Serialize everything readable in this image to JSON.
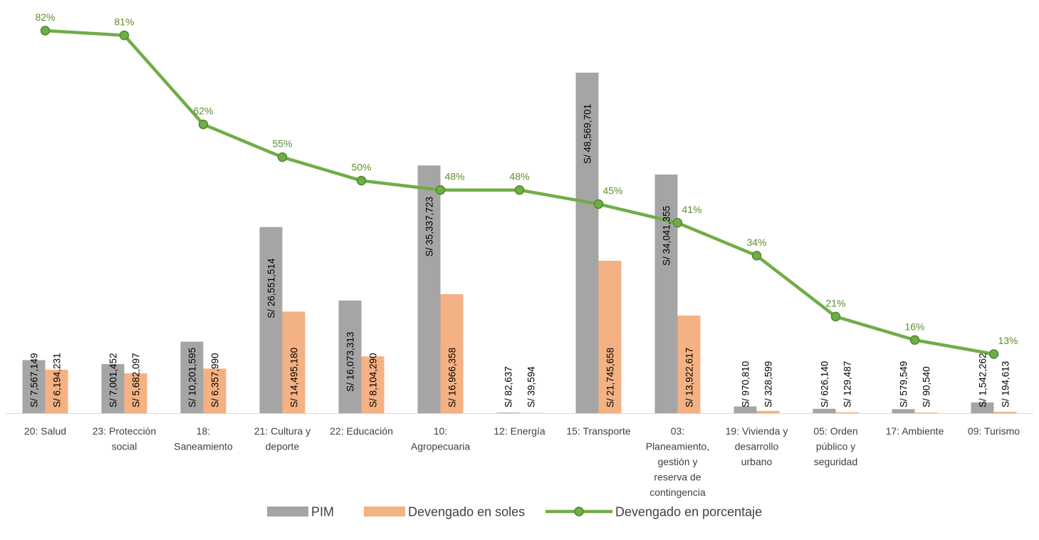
{
  "chart_data": {
    "type": "bar",
    "categories": [
      [
        "20: Salud"
      ],
      [
        "23: Protección",
        "social"
      ],
      [
        "18:",
        "Saneamiento"
      ],
      [
        "21: Cultura y",
        "deporte"
      ],
      [
        "22: Educación"
      ],
      [
        "10:",
        "Agropecuaria"
      ],
      [
        "12: Energía"
      ],
      [
        "15: Transporte"
      ],
      [
        "03:",
        "Planeamiento,",
        "gestión y",
        "reserva de",
        "contingencia"
      ],
      [
        "19: Vivienda y",
        "desarrollo",
        "urbano"
      ],
      [
        "05: Orden",
        "público y",
        "seguridad"
      ],
      [
        "17: Ambiente"
      ],
      [
        "09: Turismo"
      ]
    ],
    "series": [
      {
        "name": "PIM",
        "type": "bar",
        "color": "#A5A5A5",
        "values": [
          7567149,
          7001452,
          10201595,
          26551514,
          16073313,
          35337723,
          82637,
          48569701,
          34041355,
          970810,
          626140,
          579549,
          1542262
        ],
        "labels": [
          "S/ 7,567,149",
          "S/ 7,001,452",
          "S/ 10,201,595",
          "S/ 26,551,514",
          "S/ 16,073,313",
          "S/ 35,337,723",
          "S/ 82,637",
          "S/ 48,569,701",
          "S/ 34,041,355",
          "S/ 970,810",
          "S/ 626,140",
          "S/ 579,549",
          "S/ 1,542,262"
        ]
      },
      {
        "name": "Devengado en soles",
        "type": "bar",
        "color": "#F4B183",
        "values": [
          6194231,
          5682097,
          6357990,
          14495180,
          8104290,
          16966358,
          39594,
          21745658,
          13922617,
          328599,
          129487,
          90540,
          194613
        ],
        "labels": [
          "S/ 6,194,231",
          "S/ 5,682,097",
          "S/ 6,357,990",
          "S/ 14,495,180",
          "S/ 8,104,290",
          "S/ 16,966,358",
          "S/ 39,594",
          "S/ 21,745,658",
          "S/ 13,922,617",
          "S/ 328,599",
          "S/ 129,487",
          "S/ 90,540",
          "S/ 194,613"
        ]
      },
      {
        "name": "Devengado en porcentaje",
        "type": "line",
        "color": "#70AD47",
        "values": [
          82,
          81,
          62,
          55,
          50,
          48,
          48,
          45,
          41,
          34,
          21,
          16,
          13
        ],
        "labels": [
          "82%",
          "81%",
          "62%",
          "55%",
          "50%",
          "48%",
          "48%",
          "45%",
          "41%",
          "34%",
          "21%",
          "16%",
          "13%"
        ]
      }
    ],
    "title": "",
    "xlabel": "",
    "ylabel": "",
    "ylim_bars": [
      0,
      52000000
    ],
    "ylim_line": [
      0,
      100
    ],
    "grid": false,
    "legend": "bottom"
  }
}
